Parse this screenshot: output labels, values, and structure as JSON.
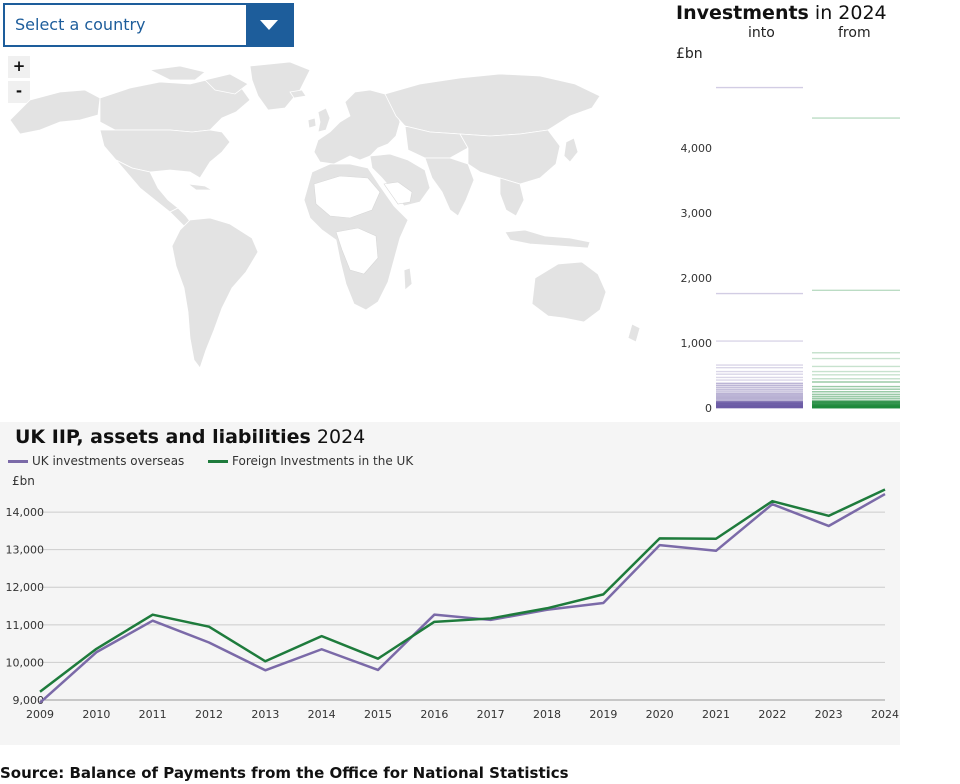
{
  "selector": {
    "placeholder": "Select a country"
  },
  "zoom": {
    "in_label": "+",
    "out_label": "-"
  },
  "investments_panel": {
    "title_bold": "Investments",
    "title_rest": " in 2024",
    "col_into": "into",
    "col_from": "from",
    "unit": "£bn",
    "accent_into": "#6b5ba5",
    "accent_from": "#1e8a3c"
  },
  "chart_data": [
    {
      "type": "strip",
      "title": "Investments in 2024",
      "ylabel": "£bn",
      "ylim": [
        0,
        5200
      ],
      "yticks": [
        0,
        1000,
        2000,
        3000,
        4000
      ],
      "ytick_labels": [
        "0",
        "1,000",
        "2,000",
        "3,000",
        "4,000"
      ],
      "series": [
        {
          "name": "into",
          "values": [
            4930,
            1760,
            1030,
            660,
            620,
            560,
            520,
            470,
            430,
            380,
            350,
            320,
            290,
            260,
            230,
            210,
            190,
            170,
            150,
            130,
            110,
            95,
            80,
            70,
            60,
            50,
            40,
            30,
            25,
            20,
            15,
            10,
            5
          ]
        },
        {
          "name": "from",
          "values": [
            4460,
            1810,
            850,
            760,
            640,
            560,
            510,
            450,
            400,
            330,
            290,
            250,
            210,
            180,
            150,
            120,
            100,
            85,
            70,
            55,
            45,
            35,
            28,
            20,
            15,
            10,
            6,
            3
          ]
        }
      ]
    },
    {
      "type": "line",
      "title": "UK IIP, assets and liabilities 2024",
      "ylabel": "£bn",
      "x": [
        2009,
        2010,
        2011,
        2012,
        2013,
        2014,
        2015,
        2016,
        2017,
        2018,
        2019,
        2020,
        2021,
        2022,
        2023,
        2024
      ],
      "ylim": [
        9000,
        14800
      ],
      "yticks": [
        9000,
        10000,
        11000,
        12000,
        13000,
        14000
      ],
      "ytick_labels": [
        "9,000",
        "10,000",
        "11,000",
        "12,000",
        "13,000",
        "14,000"
      ],
      "grid": true,
      "legend": "top-left",
      "series": [
        {
          "name": "UK investments overseas",
          "color": "#7b6aa8",
          "values": [
            8930,
            10270,
            11110,
            10530,
            9790,
            10350,
            9800,
            11270,
            11130,
            11400,
            11580,
            13120,
            12970,
            14210,
            13630,
            14480
          ]
        },
        {
          "name": "Foreign Investments in the UK",
          "color": "#1e7b3c",
          "values": [
            9220,
            10360,
            11270,
            10950,
            10030,
            10700,
            10100,
            11080,
            11170,
            11440,
            11810,
            13300,
            13290,
            14290,
            13900,
            14600
          ]
        }
      ]
    }
  ],
  "iip_panel": {
    "title_bold": "UK IIP, assets and liabilities",
    "title_rest": " 2024",
    "unit": "£bn",
    "legend_overseas": "UK investments overseas",
    "legend_foreign": "Foreign Investments in the UK"
  },
  "source": "Source: Balance of Payments from the Office for National Statistics"
}
